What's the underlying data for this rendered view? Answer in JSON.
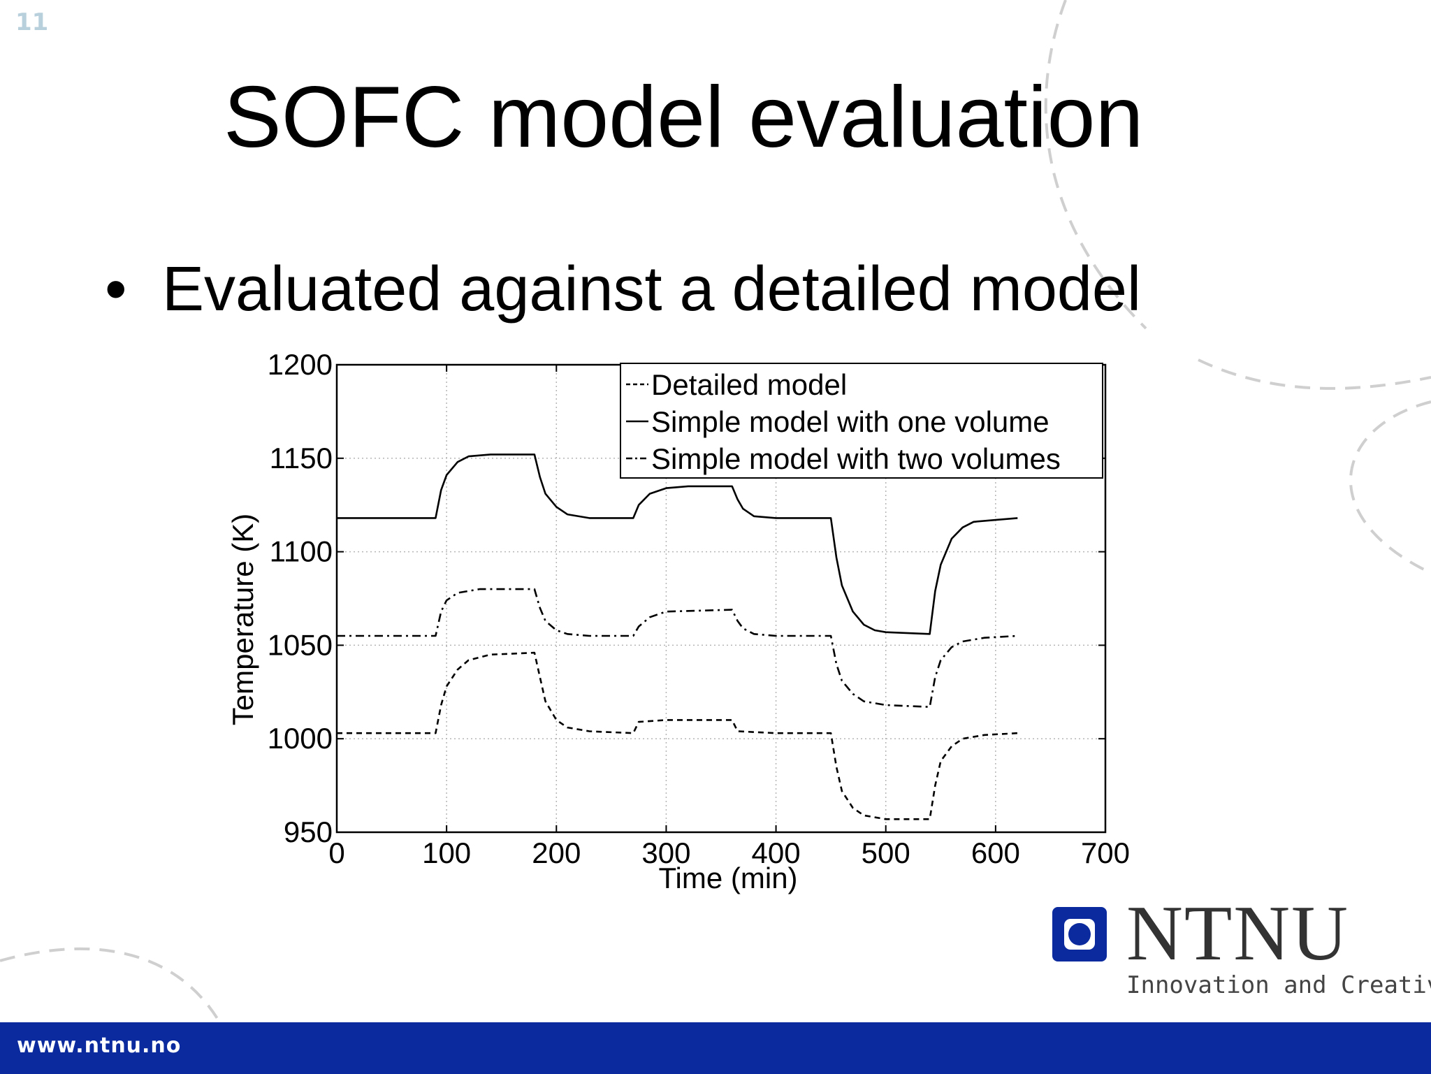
{
  "slide": {
    "number": "11",
    "title": "SOFC model evaluation",
    "bullet": "Evaluated against a detailed model"
  },
  "footer": {
    "url": "www.ntnu.no",
    "color": "#0a2a9e"
  },
  "logo": {
    "name": "NTNU",
    "tagline": "Innovation and Creativity",
    "color": "#0a2a9e"
  },
  "chart_data": {
    "type": "line",
    "xlabel": "Time (min)",
    "ylabel": "Temperature (K)",
    "xlim": [
      0,
      700
    ],
    "ylim": [
      950,
      1200
    ],
    "xticks": [
      0,
      100,
      200,
      300,
      400,
      500,
      600,
      700
    ],
    "yticks": [
      950,
      1000,
      1050,
      1100,
      1150,
      1200
    ],
    "grid": true,
    "legend_position": "top-right",
    "series": [
      {
        "name": "Detailed model",
        "style": "dashed",
        "points": [
          [
            0,
            1003
          ],
          [
            90,
            1003
          ],
          [
            95,
            1018
          ],
          [
            100,
            1028
          ],
          [
            110,
            1037
          ],
          [
            120,
            1042
          ],
          [
            140,
            1045
          ],
          [
            180,
            1046
          ],
          [
            185,
            1033
          ],
          [
            190,
            1020
          ],
          [
            200,
            1010
          ],
          [
            210,
            1006
          ],
          [
            230,
            1004
          ],
          [
            270,
            1003
          ],
          [
            275,
            1009
          ],
          [
            300,
            1010
          ],
          [
            360,
            1010
          ],
          [
            365,
            1004
          ],
          [
            400,
            1003
          ],
          [
            450,
            1003
          ],
          [
            455,
            985
          ],
          [
            460,
            972
          ],
          [
            470,
            963
          ],
          [
            480,
            959
          ],
          [
            500,
            957
          ],
          [
            540,
            957
          ],
          [
            545,
            975
          ],
          [
            550,
            988
          ],
          [
            560,
            996
          ],
          [
            570,
            1000
          ],
          [
            590,
            1002
          ],
          [
            620,
            1003
          ]
        ]
      },
      {
        "name": "Simple model with one volume",
        "style": "solid",
        "points": [
          [
            0,
            1118
          ],
          [
            90,
            1118
          ],
          [
            95,
            1133
          ],
          [
            100,
            1141
          ],
          [
            110,
            1148
          ],
          [
            120,
            1151
          ],
          [
            140,
            1152
          ],
          [
            180,
            1152
          ],
          [
            185,
            1140
          ],
          [
            190,
            1131
          ],
          [
            200,
            1124
          ],
          [
            210,
            1120
          ],
          [
            230,
            1118
          ],
          [
            270,
            1118
          ],
          [
            275,
            1125
          ],
          [
            285,
            1131
          ],
          [
            300,
            1134
          ],
          [
            320,
            1135
          ],
          [
            360,
            1135
          ],
          [
            365,
            1128
          ],
          [
            370,
            1123
          ],
          [
            380,
            1119
          ],
          [
            400,
            1118
          ],
          [
            450,
            1118
          ],
          [
            455,
            1097
          ],
          [
            460,
            1082
          ],
          [
            470,
            1068
          ],
          [
            480,
            1061
          ],
          [
            490,
            1058
          ],
          [
            500,
            1057
          ],
          [
            540,
            1056
          ],
          [
            545,
            1079
          ],
          [
            550,
            1093
          ],
          [
            560,
            1107
          ],
          [
            570,
            1113
          ],
          [
            580,
            1116
          ],
          [
            600,
            1117
          ],
          [
            620,
            1118
          ]
        ]
      },
      {
        "name": "Simple model with two volumes",
        "style": "dash-dot",
        "points": [
          [
            0,
            1055
          ],
          [
            90,
            1055
          ],
          [
            95,
            1068
          ],
          [
            100,
            1074
          ],
          [
            110,
            1078
          ],
          [
            130,
            1080
          ],
          [
            180,
            1080
          ],
          [
            185,
            1070
          ],
          [
            190,
            1063
          ],
          [
            200,
            1058
          ],
          [
            210,
            1056
          ],
          [
            230,
            1055
          ],
          [
            270,
            1055
          ],
          [
            275,
            1060
          ],
          [
            285,
            1065
          ],
          [
            300,
            1068
          ],
          [
            360,
            1069
          ],
          [
            365,
            1063
          ],
          [
            370,
            1059
          ],
          [
            380,
            1056
          ],
          [
            400,
            1055
          ],
          [
            450,
            1055
          ],
          [
            455,
            1040
          ],
          [
            460,
            1031
          ],
          [
            470,
            1024
          ],
          [
            480,
            1020
          ],
          [
            500,
            1018
          ],
          [
            540,
            1017
          ],
          [
            545,
            1033
          ],
          [
            550,
            1042
          ],
          [
            560,
            1049
          ],
          [
            570,
            1052
          ],
          [
            590,
            1054
          ],
          [
            620,
            1055
          ]
        ]
      }
    ]
  }
}
